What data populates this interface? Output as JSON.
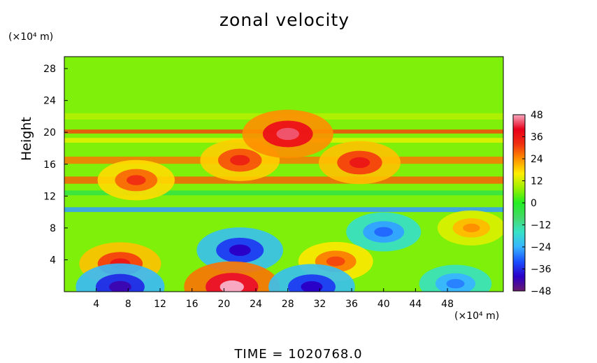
{
  "colors": {
    "scale": [
      "#6a1a6e",
      "#2a00c8",
      "#1a50ff",
      "#38b4ff",
      "#36e2c8",
      "#44d86a",
      "#22ee22",
      "#9cf000",
      "#ffee00",
      "#ff9000",
      "#f03010",
      "#e8001a",
      "#f8a8c0"
    ]
  },
  "chart_data": {
    "type": "heatmap",
    "title": "zonal velocity",
    "ylabel": "Height",
    "y_unit": "(×10⁴ m)",
    "x_unit": "(×10⁴ m)",
    "xlim": [
      0,
      55
    ],
    "ylim": [
      0,
      29.5
    ],
    "x_ticks": [
      4,
      8,
      12,
      16,
      20,
      24,
      28,
      32,
      36,
      40,
      44,
      48
    ],
    "y_ticks": [
      4,
      8,
      12,
      16,
      20,
      24,
      28
    ],
    "x_tick_labels": [
      "4",
      "8",
      "12",
      "16",
      "20",
      "24",
      "28",
      "32",
      "36",
      "40",
      "44",
      "48"
    ],
    "y_tick_labels": [
      "4",
      "8",
      "12",
      "16",
      "20",
      "24",
      "28"
    ],
    "colorbar": {
      "min": -48,
      "max": 48,
      "ticks": [
        48,
        36,
        24,
        12,
        0,
        -12,
        -24,
        -36,
        -48
      ],
      "labels": [
        "48",
        "36",
        "24",
        "12",
        "0",
        "−12",
        "−24",
        "−36",
        "−48"
      ]
    },
    "background_value": 6,
    "layers": [
      {
        "y": 20.1,
        "value": 30,
        "thickness": 0.5
      },
      {
        "y": 19.0,
        "value": 14,
        "thickness": 0.6
      },
      {
        "y": 16.5,
        "value": 26,
        "thickness": 0.9
      },
      {
        "y": 14.0,
        "value": 28,
        "thickness": 0.9
      },
      {
        "y": 12.4,
        "value": -4,
        "thickness": 0.6
      },
      {
        "y": 10.3,
        "value": -26,
        "thickness": 0.6
      },
      {
        "y": 22.0,
        "value": 10,
        "thickness": 0.8
      }
    ],
    "features": [
      {
        "x": 22,
        "y": 16.5,
        "value": 34
      },
      {
        "x": 9,
        "y": 14,
        "value": 32
      },
      {
        "x": 37,
        "y": 16.2,
        "value": 36
      },
      {
        "x": 28,
        "y": 19.8,
        "value": 44
      },
      {
        "x": 22,
        "y": 5.2,
        "value": -40
      },
      {
        "x": 40,
        "y": 7.5,
        "value": -30
      },
      {
        "x": 7,
        "y": 3.5,
        "value": 36
      },
      {
        "x": 34,
        "y": 3.8,
        "value": 30
      },
      {
        "x": 51,
        "y": 8.0,
        "value": 24
      },
      {
        "x": 21,
        "y": 0.6,
        "value": 48
      },
      {
        "x": 7,
        "y": 0.6,
        "value": -42
      },
      {
        "x": 31,
        "y": 0.6,
        "value": -40
      },
      {
        "x": 49,
        "y": 1.0,
        "value": -28
      }
    ],
    "time_label": "TIME",
    "time_value": "1020768.0"
  }
}
